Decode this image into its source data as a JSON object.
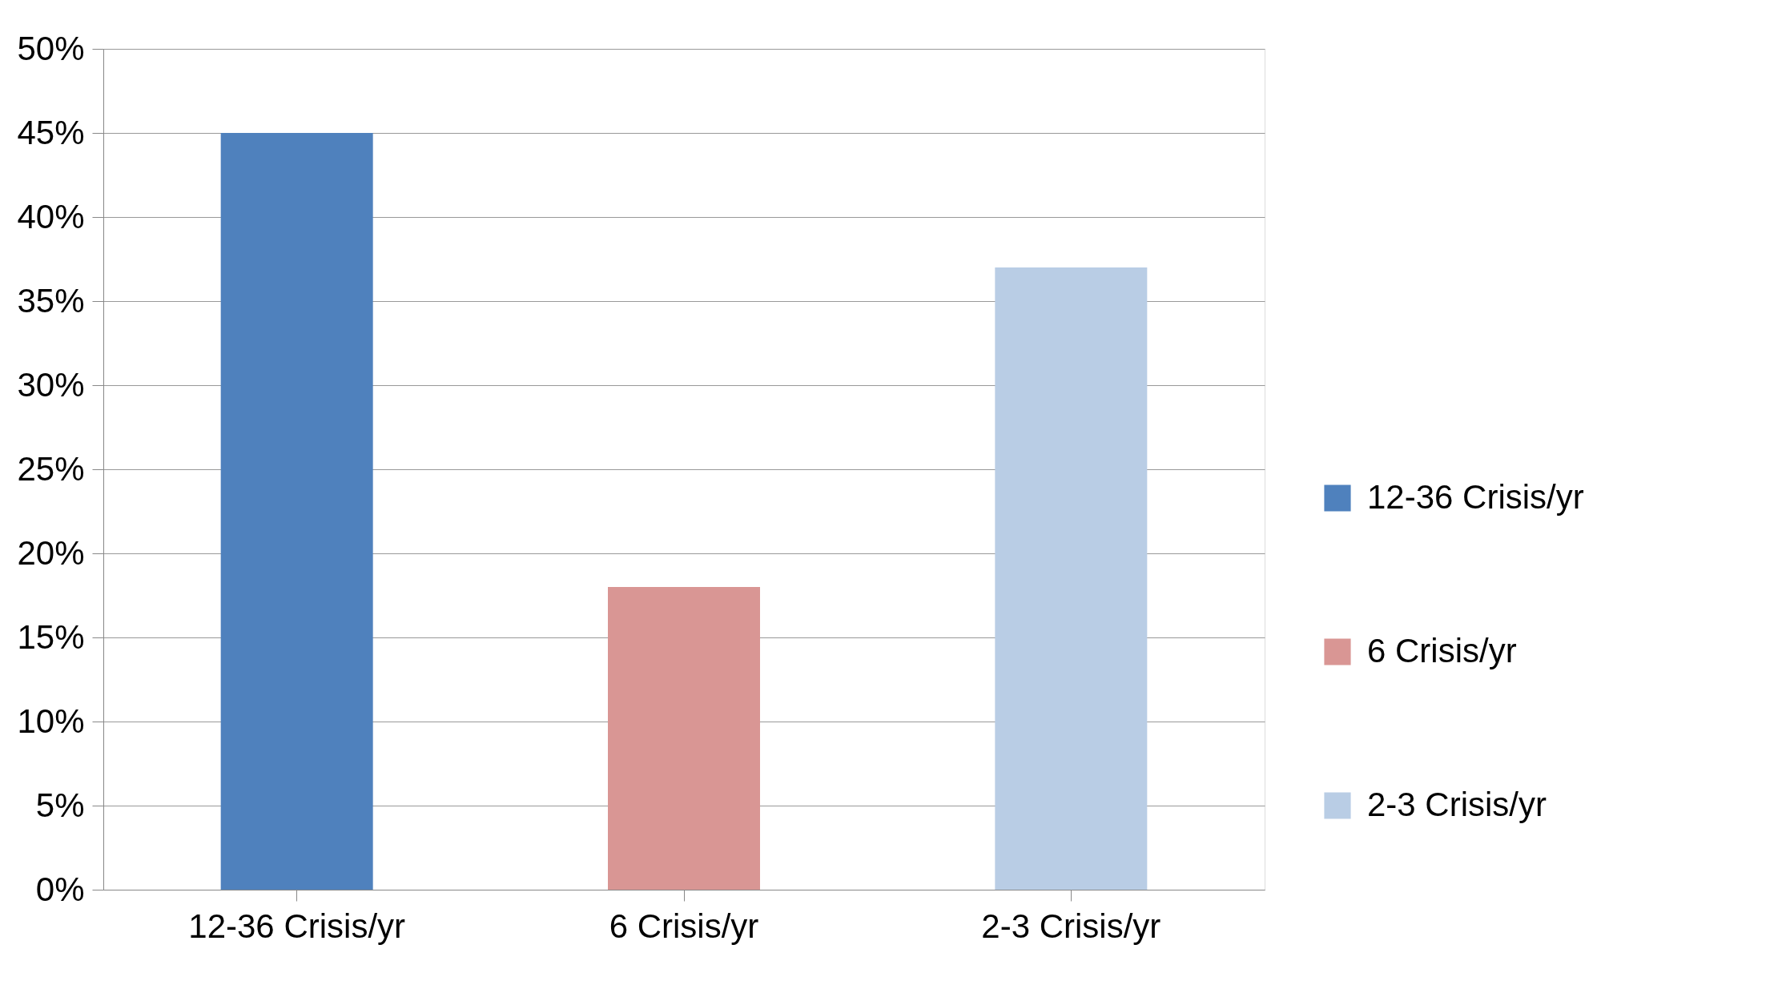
{
  "chart_data": {
    "type": "bar",
    "categories": [
      "12-36 Crisis/yr",
      "6 Crisis/yr",
      "2-3 Crisis/yr"
    ],
    "series": [
      {
        "name": "12-36 Crisis/yr",
        "color": "#4f81bd",
        "values": [
          45,
          null,
          null
        ]
      },
      {
        "name": "6 Crisis/yr",
        "color": "#d99694",
        "values": [
          null,
          18,
          null
        ]
      },
      {
        "name": "2-3 Crisis/yr",
        "color": "#b9cde5",
        "values": [
          null,
          null,
          37
        ]
      }
    ],
    "ylim": [
      0,
      50
    ],
    "yticks": [
      {
        "value": 0,
        "label": "0%"
      },
      {
        "value": 5,
        "label": "5%"
      },
      {
        "value": 10,
        "label": "10%"
      },
      {
        "value": 15,
        "label": "15%"
      },
      {
        "value": 20,
        "label": "20%"
      },
      {
        "value": 25,
        "label": "25%"
      },
      {
        "value": 30,
        "label": "30%"
      },
      {
        "value": 35,
        "label": "35%"
      },
      {
        "value": 40,
        "label": "40%"
      },
      {
        "value": 45,
        "label": "45%"
      },
      {
        "value": 50,
        "label": "50%"
      }
    ],
    "grid": "y",
    "legend": "right"
  }
}
